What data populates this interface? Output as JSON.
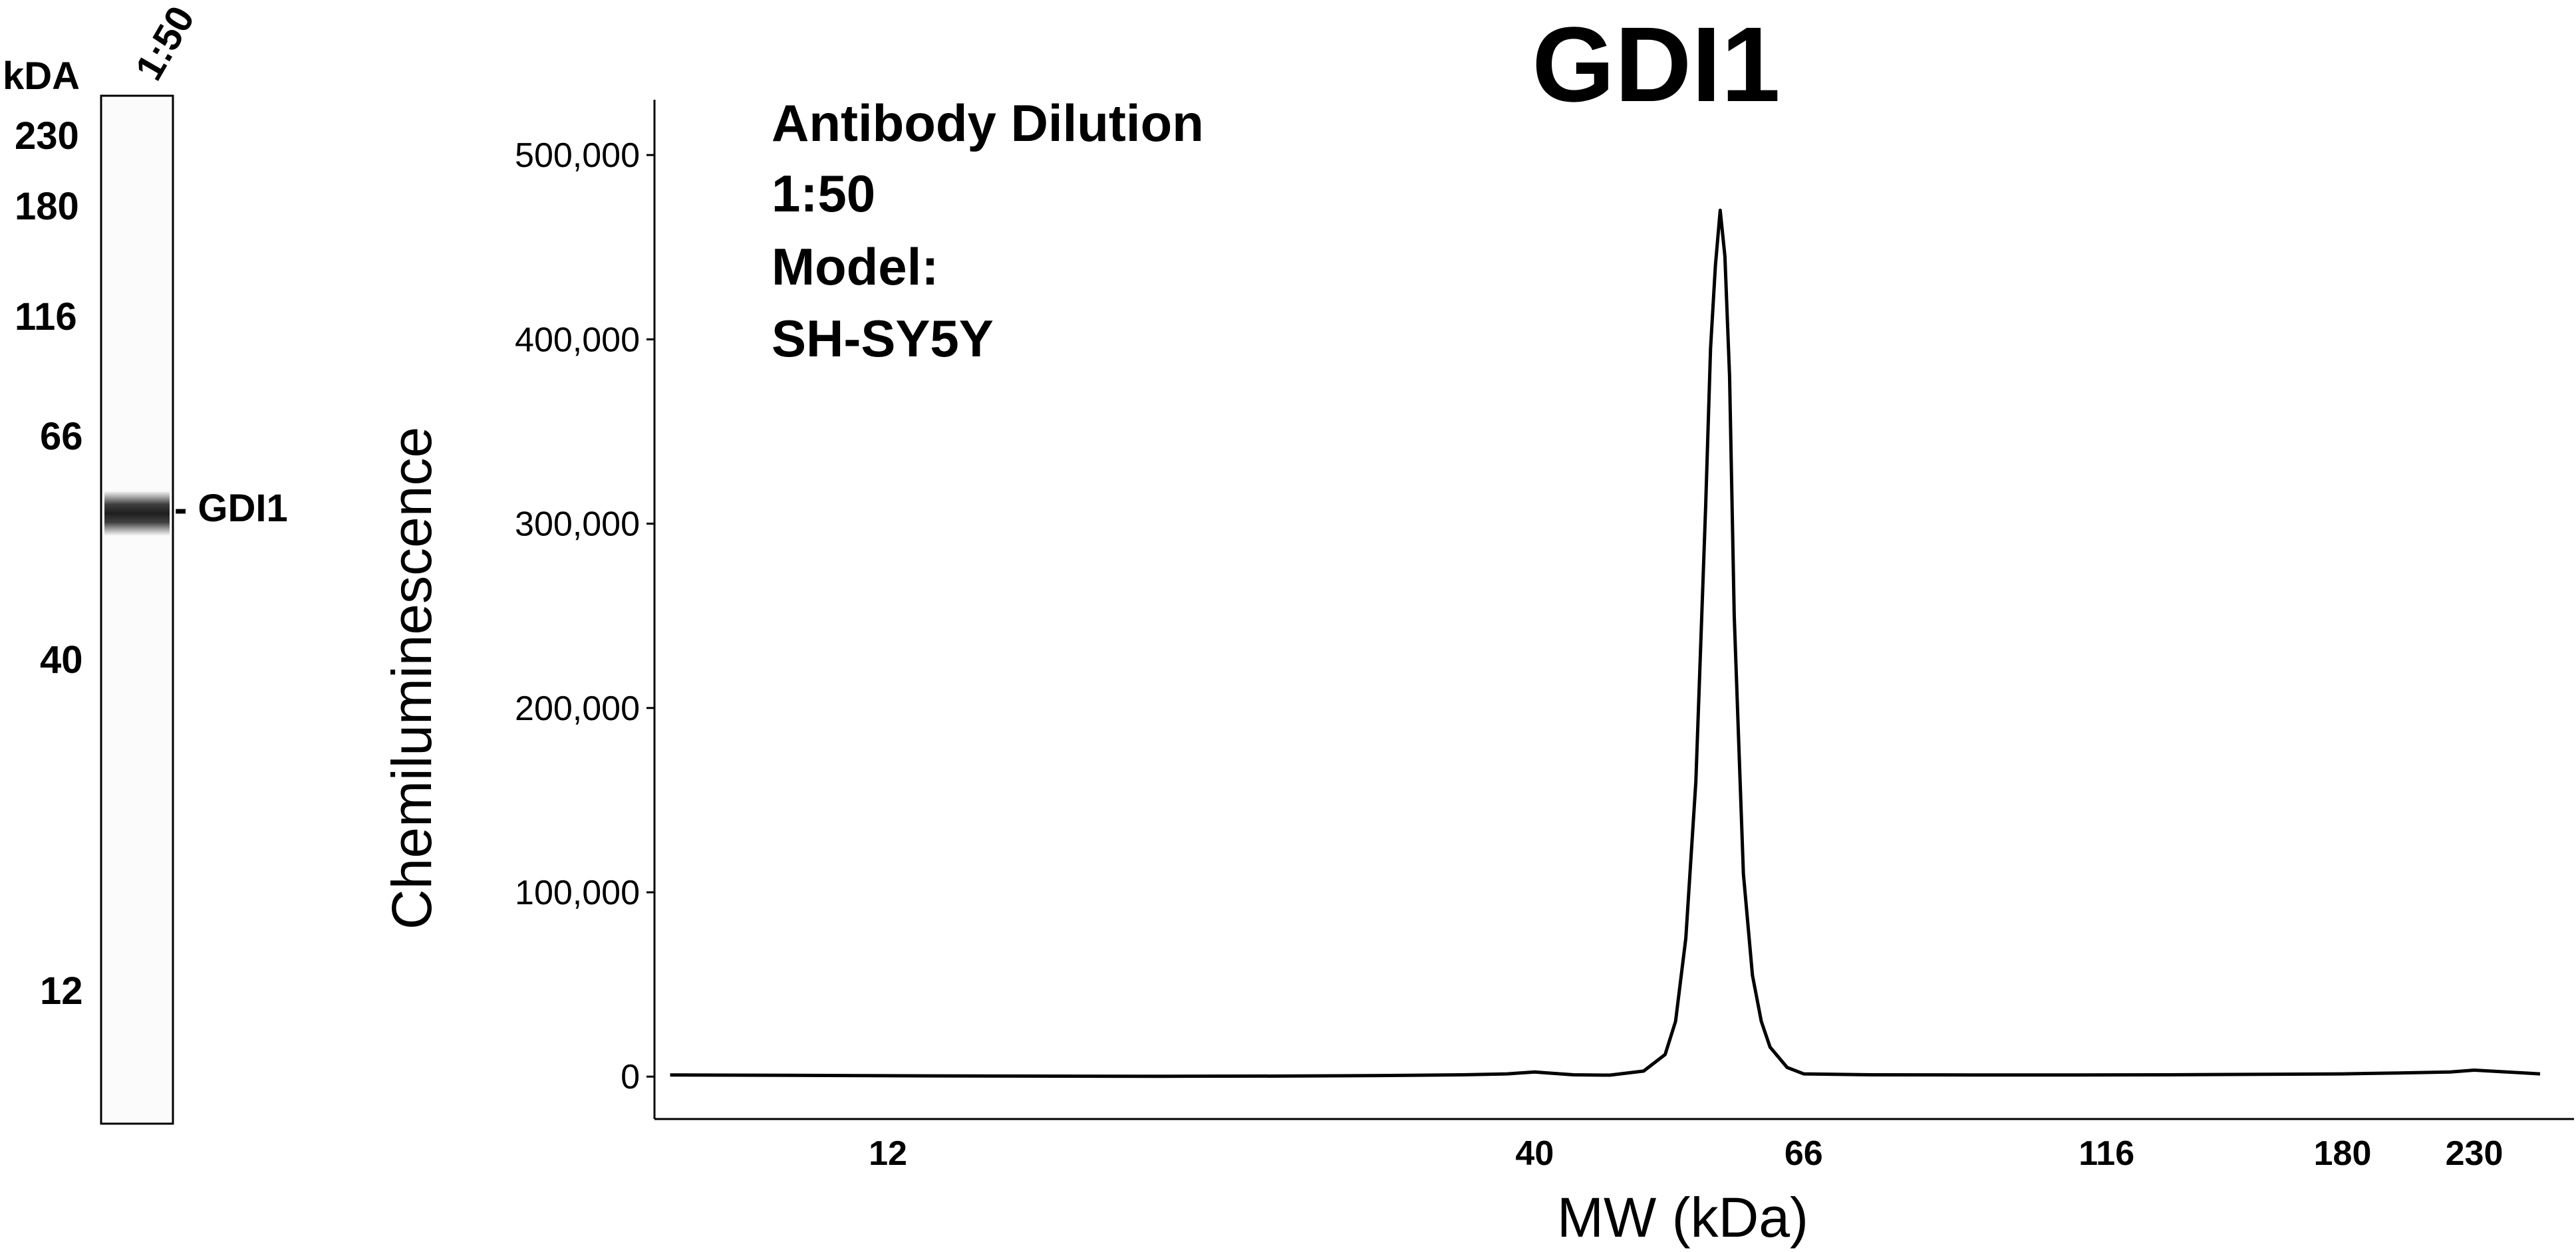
{
  "chart_data": [
    {
      "type": "lane",
      "header": "kDA",
      "lane_label": "1:50",
      "mw_markers": [
        "230",
        "180",
        "116",
        "66",
        "40",
        "12"
      ],
      "band": {
        "label": "- GDI1",
        "mw_kda": 56
      }
    },
    {
      "type": "line",
      "title": "GDI1",
      "xlabel": "MW (kDa)",
      "ylabel": "Chemiluminescence",
      "annotations": [
        "Antibody Dilution",
        "1:50",
        "Model:",
        "SH-SY5Y"
      ],
      "yticks": [
        {
          "label": "0",
          "value": 0
        },
        {
          "label": "100,000",
          "value": 100000
        },
        {
          "label": "200,000",
          "value": 200000
        },
        {
          "label": "300,000",
          "value": 300000
        },
        {
          "label": "400,000",
          "value": 400000
        },
        {
          "label": "500,000",
          "value": 500000
        }
      ],
      "xticks": [
        "12",
        "40",
        "66",
        "116",
        "180",
        "230"
      ],
      "ylim": [
        -23000,
        530000
      ],
      "x_scale": "log",
      "grid": false,
      "series": [
        {
          "x": [
            8,
            10,
            12,
            15,
            20,
            25,
            30,
            35,
            38,
            40,
            41,
            43,
            46,
            49,
            51,
            52,
            53,
            54,
            55,
            55.5,
            56,
            56.5,
            57,
            57.5,
            58,
            59,
            60,
            61,
            62,
            64,
            66,
            75,
            90,
            110,
            130,
            150,
            180,
            200,
            220,
            230,
            260
          ],
          "y": [
            900,
            700,
            500,
            300,
            200,
            300,
            600,
            1000,
            1500,
            2500,
            2000,
            1000,
            800,
            3000,
            12000,
            30000,
            75000,
            160000,
            310000,
            395000,
            440000,
            470000,
            445000,
            380000,
            250000,
            110000,
            55000,
            30000,
            16000,
            5000,
            1500,
            1000,
            900,
            900,
            1000,
            1200,
            1500,
            2000,
            2500,
            3500,
            1500
          ]
        }
      ]
    }
  ]
}
